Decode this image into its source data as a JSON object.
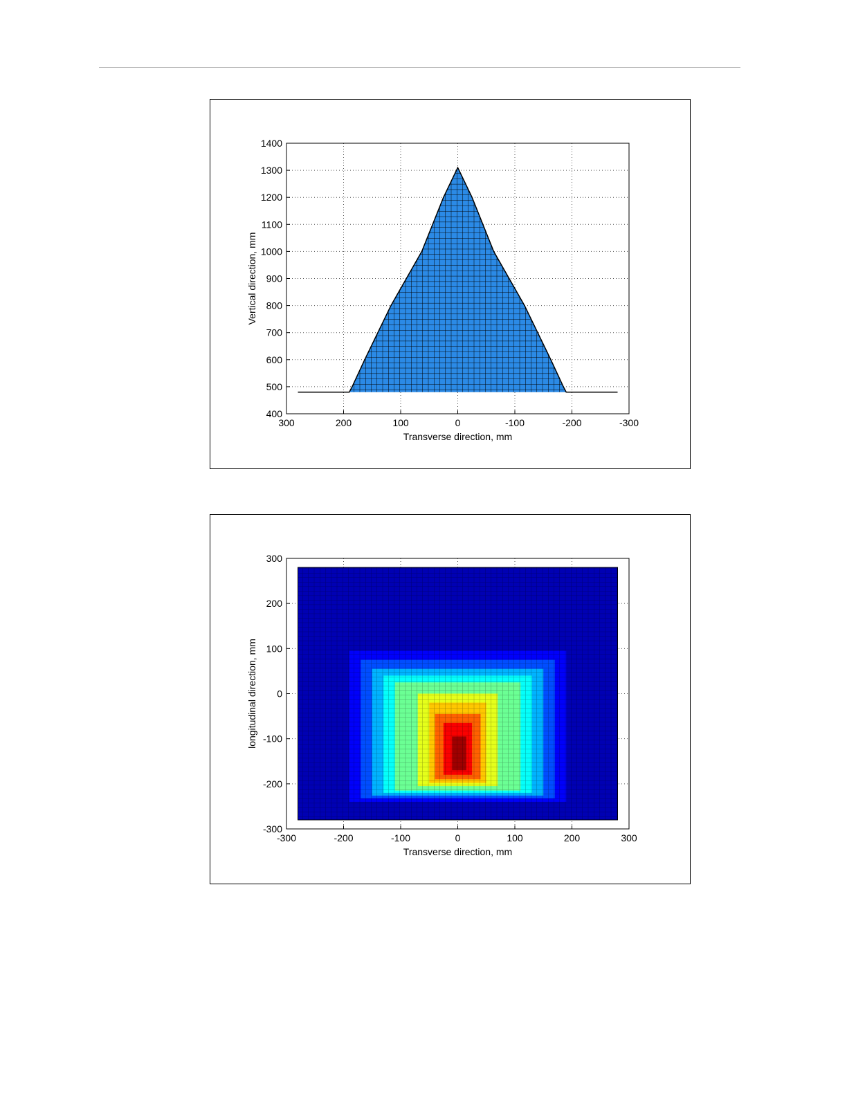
{
  "chart_data": [
    {
      "type": "area",
      "xlabel": "Transverse direction, mm",
      "ylabel": "Vertical direction, mm",
      "x": [
        280,
        190,
        185,
        163,
        117,
        63,
        25,
        0,
        -25,
        -63,
        -117,
        -163,
        -185,
        -190,
        -280
      ],
      "values": [
        480,
        480,
        500,
        600,
        800,
        1000,
        1200,
        1310,
        1200,
        1000,
        800,
        600,
        500,
        480,
        480
      ],
      "color": "#2b8ae6",
      "xlim": [
        300,
        -300
      ],
      "xticks": [
        300,
        200,
        100,
        0,
        -100,
        -200,
        -300
      ],
      "ylim": [
        400,
        1400
      ],
      "yticks": [
        400,
        500,
        600,
        700,
        800,
        900,
        1000,
        1100,
        1200,
        1300,
        1400
      ],
      "grid": true
    },
    {
      "type": "heatmap",
      "xlabel": "Transverse direction, mm",
      "ylabel": "longitudinal direction, mm",
      "cmap": "jet",
      "regions": [
        {
          "x": [
            -280,
            280
          ],
          "y": [
            -280,
            280
          ],
          "value": 0.05
        },
        {
          "x": [
            -190,
            190
          ],
          "y": [
            -240,
            95
          ],
          "value": 0.12
        },
        {
          "x": [
            -170,
            170
          ],
          "y": [
            -232,
            75
          ],
          "value": 0.2
        },
        {
          "x": [
            -150,
            150
          ],
          "y": [
            -226,
            55
          ],
          "value": 0.3
        },
        {
          "x": [
            -130,
            130
          ],
          "y": [
            -220,
            40
          ],
          "value": 0.38
        },
        {
          "x": [
            -110,
            110
          ],
          "y": [
            -215,
            25
          ],
          "value": 0.48
        },
        {
          "x": [
            -70,
            70
          ],
          "y": [
            -205,
            0
          ],
          "value": 0.6
        },
        {
          "x": [
            -50,
            50
          ],
          "y": [
            -198,
            -20
          ],
          "value": 0.68
        },
        {
          "x": [
            -40,
            40
          ],
          "y": [
            -190,
            -45
          ],
          "value": 0.78
        },
        {
          "x": [
            -25,
            25
          ],
          "y": [
            -180,
            -65
          ],
          "value": 0.88
        },
        {
          "x": [
            -10,
            15
          ],
          "y": [
            -170,
            -95
          ],
          "value": 0.97
        }
      ],
      "xlim": [
        -300,
        300
      ],
      "xticks": [
        -300,
        -200,
        -100,
        0,
        100,
        200,
        300
      ],
      "ylim": [
        -300,
        300
      ],
      "yticks": [
        -300,
        -200,
        -100,
        0,
        100,
        200,
        300
      ],
      "grid": true
    }
  ]
}
